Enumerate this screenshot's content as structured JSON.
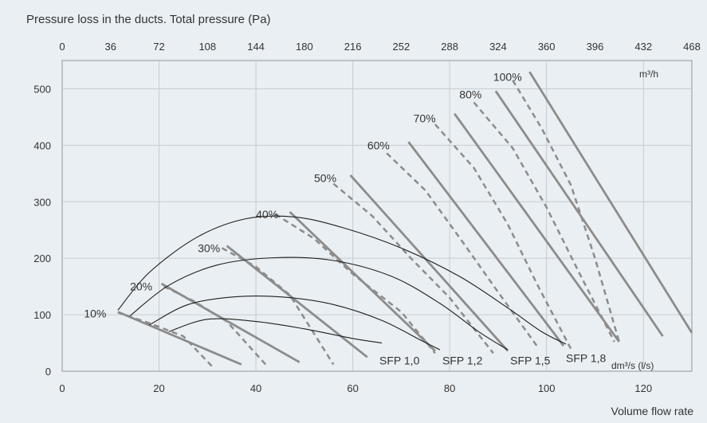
{
  "chart_data": {
    "type": "line",
    "title": "Pressure loss in the ducts. Total pressure (Pa)",
    "xlabel": "Volume flow rate",
    "x_unit": "dm³/s (l/s)",
    "top_axis_unit": "m³/h",
    "xlim": [
      0,
      130
    ],
    "ylim": [
      0,
      550
    ],
    "x_ticks": [
      0,
      20,
      40,
      60,
      80,
      100,
      120
    ],
    "y_ticks": [
      0,
      100,
      200,
      300,
      400,
      500
    ],
    "top_ticks": [
      "0",
      "36",
      "72",
      "108",
      "144",
      "180",
      "216",
      "252",
      "288",
      "324",
      "360",
      "396",
      "432",
      "468"
    ],
    "grid": true,
    "fan_speed_lines": [
      {
        "label": "10%",
        "points": [
          [
            11.5,
            105
          ],
          [
            37,
            12
          ]
        ]
      },
      {
        "label": "20%",
        "points": [
          [
            20.5,
            155
          ],
          [
            49,
            16
          ]
        ]
      },
      {
        "label": "30%",
        "points": [
          [
            34,
            222
          ],
          [
            63,
            25
          ]
        ]
      },
      {
        "label": "40%",
        "points": [
          [
            47,
            282
          ],
          [
            77,
            36
          ]
        ]
      },
      {
        "label": "50%",
        "points": [
          [
            59.5,
            347
          ],
          [
            92,
            36
          ]
        ]
      },
      {
        "label": "60%",
        "points": [
          [
            71.5,
            406
          ],
          [
            103.5,
            45
          ]
        ]
      },
      {
        "label": "70%",
        "points": [
          [
            81,
            456
          ],
          [
            115,
            52
          ]
        ]
      },
      {
        "label": "80%",
        "points": [
          [
            89.5,
            496
          ],
          [
            124,
            62
          ]
        ]
      },
      {
        "label": "100%",
        "points": [
          [
            96.5,
            530
          ],
          [
            130,
            68
          ]
        ]
      }
    ],
    "sfp_dashed_lines": [
      {
        "points": [
          [
            11.5,
            104
          ],
          [
            18,
            85
          ],
          [
            25,
            62
          ],
          [
            31,
            8
          ]
        ]
      },
      {
        "points": [
          [
            21,
            150
          ],
          [
            27,
            125
          ],
          [
            34,
            88
          ],
          [
            42,
            12
          ]
        ]
      },
      {
        "points": [
          [
            33,
            218
          ],
          [
            40,
            185
          ],
          [
            47,
            135
          ],
          [
            56,
            12
          ]
        ]
      },
      {
        "points": [
          [
            44,
            278
          ],
          [
            52,
            235
          ],
          [
            60,
            172
          ],
          [
            70,
            105
          ],
          [
            77,
            32
          ]
        ]
      },
      {
        "points": [
          [
            56,
            332
          ],
          [
            64,
            275
          ],
          [
            72,
            200
          ],
          [
            80,
            130
          ],
          [
            89,
            32
          ]
        ]
      },
      {
        "points": [
          [
            67,
            386
          ],
          [
            75,
            320
          ],
          [
            83,
            225
          ],
          [
            90,
            140
          ],
          [
            98,
            45
          ]
        ]
      },
      {
        "points": [
          [
            77,
            437
          ],
          [
            85,
            360
          ],
          [
            92,
            260
          ],
          [
            98,
            155
          ],
          [
            105,
            40
          ]
        ]
      },
      {
        "points": [
          [
            85,
            476
          ],
          [
            93,
            395
          ],
          [
            100,
            290
          ],
          [
            107,
            170
          ],
          [
            114,
            52
          ]
        ]
      },
      {
        "points": [
          [
            93,
            515
          ],
          [
            99,
            430
          ],
          [
            105,
            330
          ],
          [
            110,
            200
          ],
          [
            115,
            52
          ]
        ]
      }
    ],
    "sfp_curves": [
      {
        "label": "SFP 1,0",
        "points": [
          [
            22,
            70
          ],
          [
            30,
            92
          ],
          [
            40,
            88
          ],
          [
            50,
            75
          ],
          [
            60,
            58
          ],
          [
            66,
            50
          ]
        ]
      },
      {
        "label": "SFP 1,2",
        "points": [
          [
            18,
            82
          ],
          [
            26,
            118
          ],
          [
            36,
            132
          ],
          [
            46,
            131
          ],
          [
            56,
            118
          ],
          [
            66,
            90
          ],
          [
            74,
            55
          ],
          [
            78,
            38
          ]
        ]
      },
      {
        "label": "SFP 1,5",
        "points": [
          [
            14,
            98
          ],
          [
            22,
            152
          ],
          [
            32,
            188
          ],
          [
            44,
            201
          ],
          [
            56,
            196
          ],
          [
            68,
            168
          ],
          [
            78,
            120
          ],
          [
            86,
            70
          ],
          [
            92,
            38
          ]
        ]
      },
      {
        "label": "SFP 1,8",
        "points": [
          [
            11.5,
            108
          ],
          [
            18,
            175
          ],
          [
            28,
            238
          ],
          [
            38,
            270
          ],
          [
            48,
            273
          ],
          [
            58,
            254
          ],
          [
            70,
            218
          ],
          [
            82,
            168
          ],
          [
            92,
            112
          ],
          [
            99,
            70
          ],
          [
            104,
            48
          ]
        ]
      }
    ],
    "sfp_label_positions": [
      [
        65.5,
        12
      ],
      [
        78.5,
        12
      ],
      [
        92.5,
        12
      ],
      [
        104,
        16
      ]
    ],
    "pct_label_positions": [
      [
        4.5,
        102
      ],
      [
        14,
        150
      ],
      [
        28,
        218
      ],
      [
        40,
        278
      ],
      [
        52,
        342
      ],
      [
        63,
        400
      ],
      [
        72.5,
        448
      ],
      [
        82,
        490
      ],
      [
        89,
        521
      ]
    ]
  }
}
